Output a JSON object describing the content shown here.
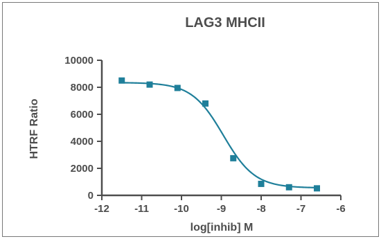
{
  "chart_data": {
    "type": "scatter",
    "title": "LAG3 MHCII",
    "xlabel": "log[inhib] M",
    "ylabel": "HTRF Ratio",
    "xlim": [
      -12,
      -6
    ],
    "ylim": [
      0,
      10000
    ],
    "x_ticks": [
      -12,
      -11,
      -10,
      -9,
      -8,
      -7,
      -6
    ],
    "y_ticks": [
      0,
      2000,
      4000,
      6000,
      8000,
      10000
    ],
    "x_tick_labels": [
      "-12",
      "-11",
      "-10",
      "-9",
      "-8",
      "-7",
      "-6"
    ],
    "y_tick_labels": [
      "0",
      "2000",
      "4000",
      "6000",
      "8000",
      "10000"
    ],
    "series": [
      {
        "color": "#1f7f9a",
        "x": [
          -11.5,
          -10.8,
          -10.1,
          -9.4,
          -8.7,
          -8.0,
          -7.3,
          -6.6
        ],
        "values": [
          8500,
          8200,
          7950,
          6800,
          2750,
          850,
          600,
          520
        ]
      }
    ],
    "fit_curve": {
      "color": "#1f7f9a",
      "top": 8350,
      "bottom": 550,
      "log_ic50": -8.95,
      "hill_slope": -1.1
    },
    "grid": false
  }
}
